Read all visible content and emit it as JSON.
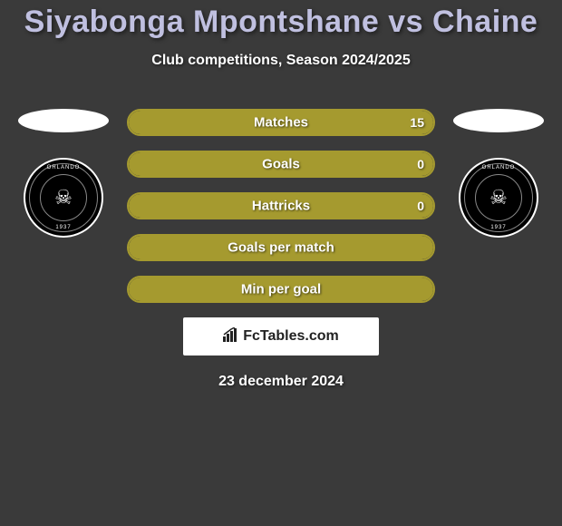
{
  "background_color": "#3a3a3a",
  "header": {
    "title": "Siyabonga Mpontshane vs Chaine",
    "title_color": "#c0c0e0",
    "title_fontsize": 34,
    "subtitle": "Club competitions, Season 2024/2025",
    "subtitle_color": "#ffffff",
    "subtitle_fontsize": 16
  },
  "players": {
    "left": {
      "name": "Siyabonga Mpontshane",
      "club_badge": {
        "top": "ORLANDO",
        "bottom": "PIRATES",
        "year": "1937"
      }
    },
    "right": {
      "name": "Chaine",
      "club_badge": {
        "top": "ORLANDO",
        "bottom": "PIRATES",
        "year": "1937"
      }
    }
  },
  "colors": {
    "left_fill": "#a59a2f",
    "right_fill": "#a59a2f",
    "full_fill": "#a59a2f",
    "bar_border": "#a59a2f",
    "bar_text": "#ffffff"
  },
  "bar_dims": {
    "height": 30,
    "radius": 15,
    "gap": 16,
    "label_fontsize": 15,
    "value_fontsize": 14
  },
  "stats": [
    {
      "label": "Matches",
      "left_value": "",
      "right_value": "15",
      "left_pct": 0,
      "right_pct": 100,
      "mode": "full"
    },
    {
      "label": "Goals",
      "left_value": "",
      "right_value": "0",
      "left_pct": 0,
      "right_pct": 100,
      "mode": "full"
    },
    {
      "label": "Hattricks",
      "left_value": "",
      "right_value": "0",
      "left_pct": 50,
      "right_pct": 50,
      "mode": "split"
    },
    {
      "label": "Goals per match",
      "left_value": "",
      "right_value": "",
      "left_pct": 0,
      "right_pct": 100,
      "mode": "full"
    },
    {
      "label": "Min per goal",
      "left_value": "",
      "right_value": "",
      "left_pct": 0,
      "right_pct": 100,
      "mode": "full"
    }
  ],
  "footer": {
    "brand": "FcTables.com",
    "date": "23 december 2024",
    "date_fontsize": 16
  }
}
